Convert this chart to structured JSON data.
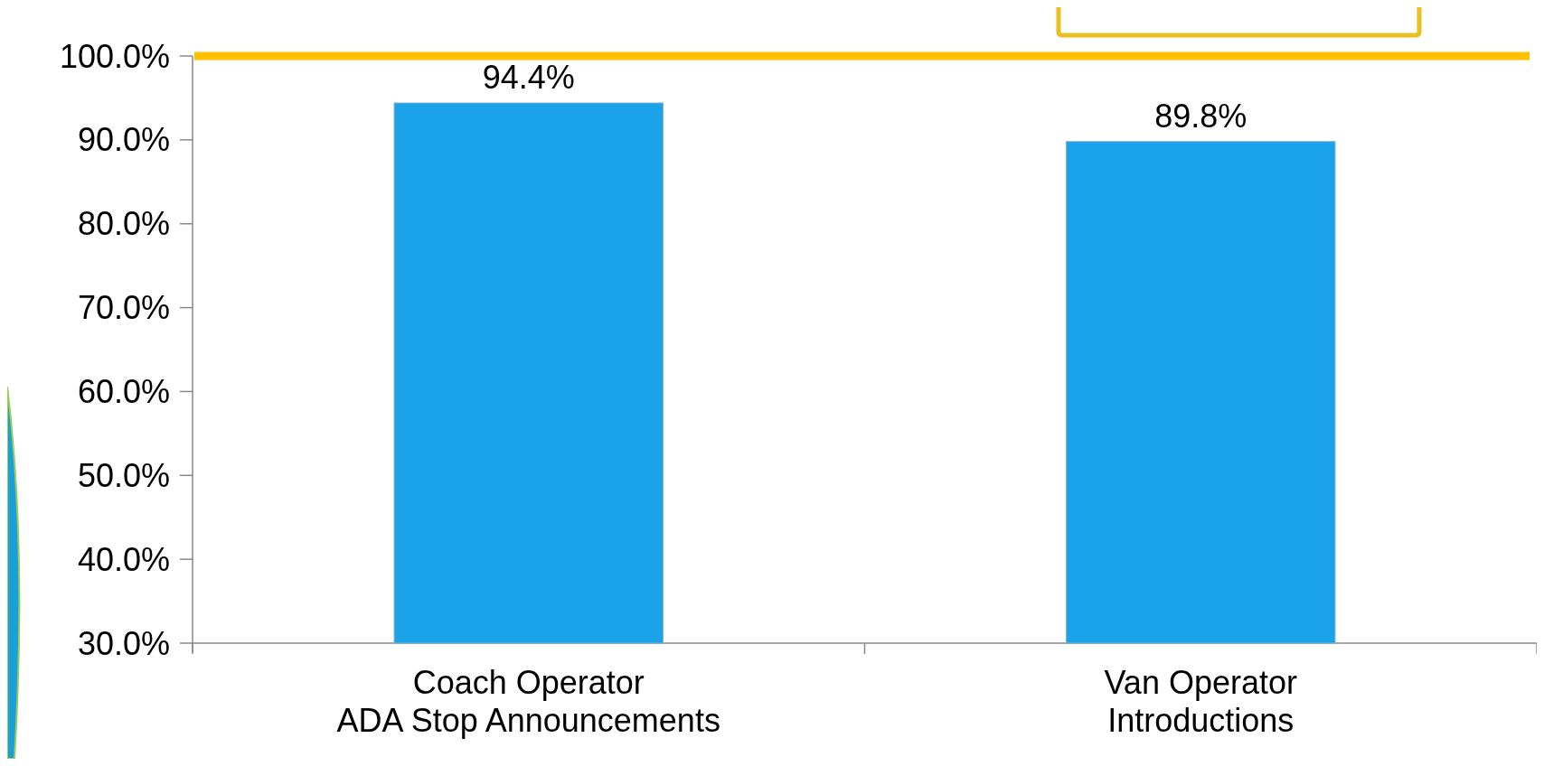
{
  "chart_data": {
    "type": "bar",
    "categories": [
      "Coach Operator\nADA Stop Announcements",
      "Van Operator\nIntroductions"
    ],
    "values": [
      94.4,
      89.8
    ],
    "color": "#1aa3e8",
    "data_labels": true,
    "value_labels": [
      "94.4%",
      "89.8%"
    ],
    "ylim": [
      30,
      100
    ],
    "yticks": [
      {
        "value": 30,
        "label": "30.0%"
      },
      {
        "value": 40,
        "label": "40.0%"
      },
      {
        "value": 50,
        "label": "50.0%"
      },
      {
        "value": 60,
        "label": "60.0%"
      },
      {
        "value": 70,
        "label": "70.0%"
      },
      {
        "value": 80,
        "label": "80.0%"
      },
      {
        "value": 90,
        "label": "90.0%"
      },
      {
        "value": 100,
        "label": "100.0%"
      }
    ],
    "ref_lines": [
      {
        "axis": "y",
        "value": 100,
        "color": "#ffc000"
      }
    ],
    "grid": false
  }
}
